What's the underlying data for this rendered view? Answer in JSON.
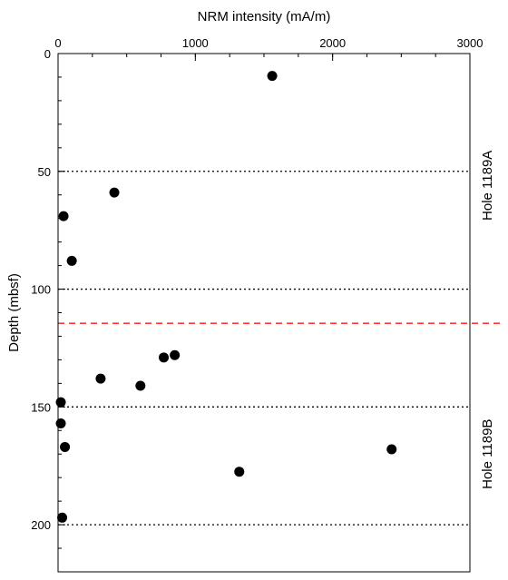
{
  "chart_data": {
    "type": "scatter",
    "title": "",
    "xlabel": "NRM intensity (mA/m)",
    "ylabel": "Depth (mbsf)",
    "xlim": [
      0,
      3000
    ],
    "ylim": [
      0,
      220
    ],
    "y_inverted": true,
    "x_axis_position": "top",
    "x_ticks": [
      0,
      1000,
      2000,
      3000
    ],
    "x_tick_labels": [
      "0",
      "1000",
      "2000",
      "3000"
    ],
    "y_ticks": [
      0,
      50,
      100,
      150,
      200
    ],
    "y_tick_labels": [
      "0",
      "50",
      "100",
      "150",
      "200"
    ],
    "y_minor_step": 10,
    "x_minor_step": 250,
    "reference_lines": [
      {
        "depth": 50,
        "style": "dotted",
        "color": "#000000"
      },
      {
        "depth": 100,
        "style": "dotted",
        "color": "#000000"
      },
      {
        "depth": 150,
        "style": "dotted",
        "color": "#000000"
      },
      {
        "depth": 200,
        "style": "dotted",
        "color": "#000000"
      }
    ],
    "boundary_line": {
      "depth": 114.5,
      "style": "dashed",
      "color": "#e8221c"
    },
    "region_labels": [
      {
        "text": "Hole 1189A",
        "depth_center": 56
      },
      {
        "text": "Hole 1189B",
        "depth_center": 170
      }
    ],
    "points": [
      {
        "x": 1560,
        "y": 9.5
      },
      {
        "x": 410,
        "y": 59
      },
      {
        "x": 40,
        "y": 69
      },
      {
        "x": 100,
        "y": 88
      },
      {
        "x": 850,
        "y": 128
      },
      {
        "x": 770,
        "y": 129
      },
      {
        "x": 310,
        "y": 138
      },
      {
        "x": 600,
        "y": 141
      },
      {
        "x": 20,
        "y": 148
      },
      {
        "x": 20,
        "y": 157
      },
      {
        "x": 50,
        "y": 167
      },
      {
        "x": 2430,
        "y": 168
      },
      {
        "x": 1320,
        "y": 177.5
      },
      {
        "x": 30,
        "y": 197
      }
    ],
    "marker_color": "#000000",
    "grid": false
  }
}
